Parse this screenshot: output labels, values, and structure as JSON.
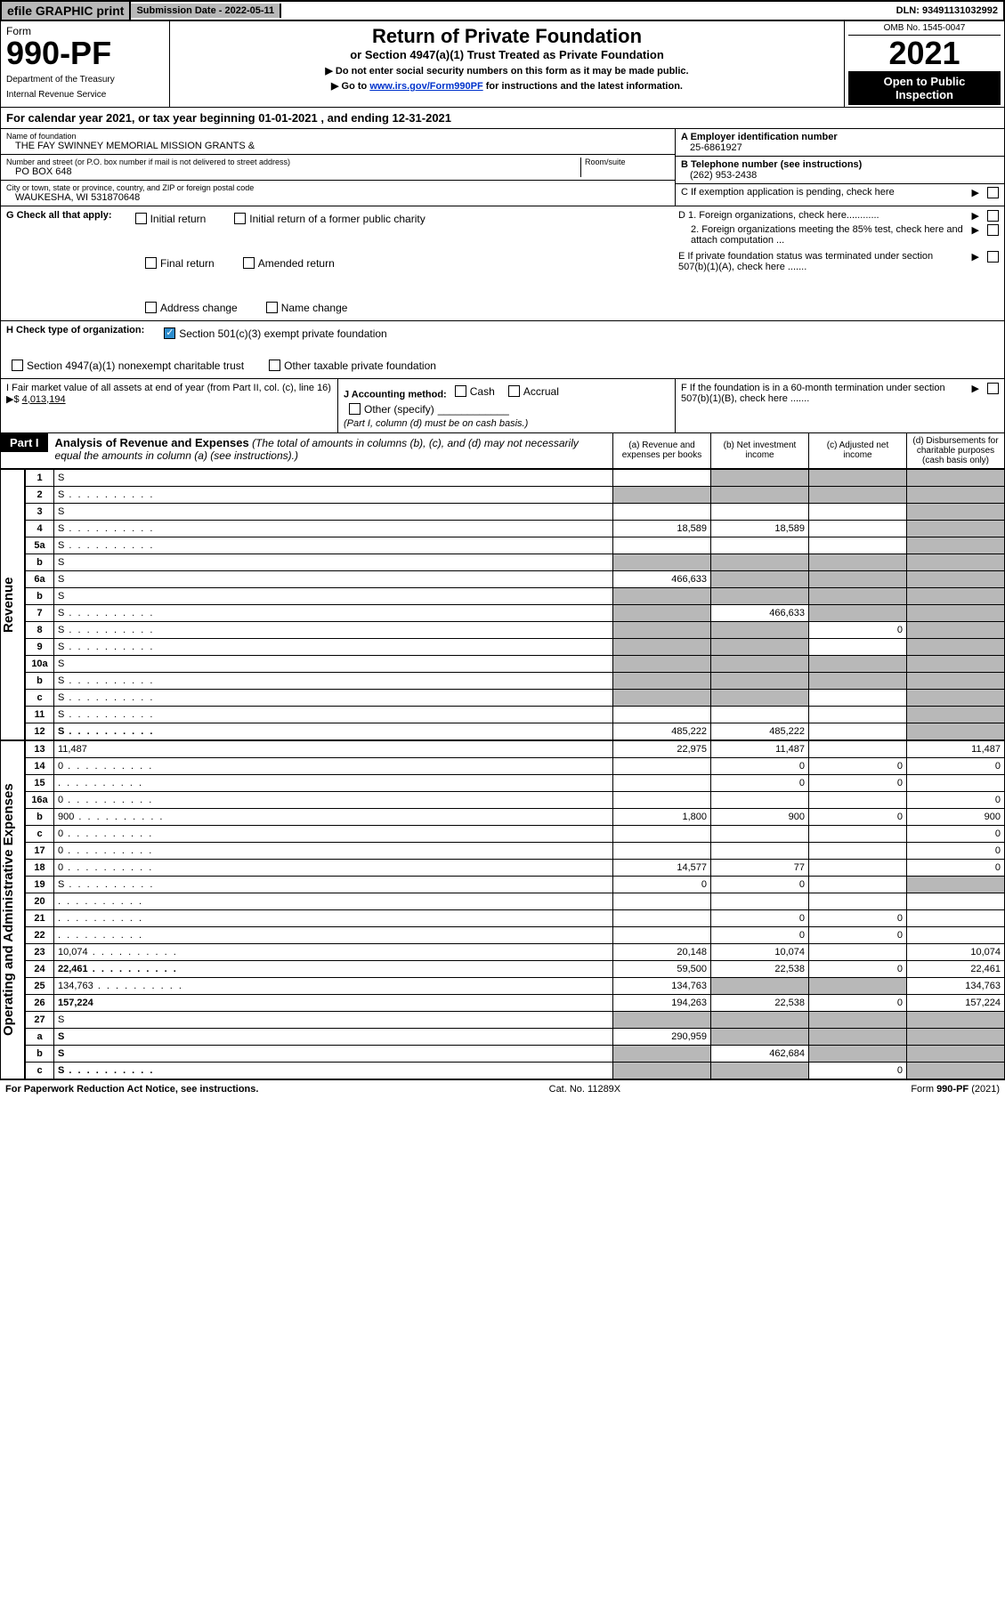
{
  "topbar": {
    "efile": "efile GRAPHIC print",
    "subdate_label": "Submission Date - ",
    "subdate": "2022-05-11",
    "dln_label": "DLN: ",
    "dln": "93491131032992"
  },
  "header": {
    "form_word": "Form",
    "form_no": "990-PF",
    "dept1": "Department of the Treasury",
    "dept2": "Internal Revenue Service",
    "title": "Return of Private Foundation",
    "subtitle": "or Section 4947(a)(1) Trust Treated as Private Foundation",
    "note1": "▶ Do not enter social security numbers on this form as it may be made public.",
    "note2_pre": "▶ Go to ",
    "note2_link": "www.irs.gov/Form990PF",
    "note2_post": " for instructions and the latest information.",
    "omb": "OMB No. 1545-0047",
    "year": "2021",
    "open1": "Open to Public",
    "open2": "Inspection"
  },
  "calyear": {
    "pre": "For calendar year 2021, or tax year beginning ",
    "begin": "01-01-2021",
    "mid": " , and ending ",
    "end": "12-31-2021"
  },
  "info": {
    "name_label": "Name of foundation",
    "name": "THE FAY SWINNEY MEMORIAL MISSION GRANTS &",
    "addr_label": "Number and street (or P.O. box number if mail is not delivered to street address)",
    "addr": "PO BOX 648",
    "room_label": "Room/suite",
    "city_label": "City or town, state or province, country, and ZIP or foreign postal code",
    "city": "WAUKESHA, WI  531870648",
    "A_label": "A Employer identification number",
    "A_val": "25-6861927",
    "B_label": "B Telephone number (see instructions)",
    "B_val": "(262) 953-2438",
    "C_label": "C If exemption application is pending, check here",
    "D1_label": "D 1. Foreign organizations, check here............",
    "D2_label": "2. Foreign organizations meeting the 85% test, check here and attach computation ...",
    "E_label": "E  If private foundation status was terminated under section 507(b)(1)(A), check here .......",
    "F_label": "F  If the foundation is in a 60-month termination under section 507(b)(1)(B), check here .......",
    "G_label": "G Check all that apply:",
    "G_opts": [
      "Initial return",
      "Initial return of a former public charity",
      "Final return",
      "Amended return",
      "Address change",
      "Name change"
    ],
    "H_label": "H Check type of organization:",
    "H_opt1": "Section 501(c)(3) exempt private foundation",
    "H_opt2": "Section 4947(a)(1) nonexempt charitable trust",
    "H_opt3": "Other taxable private foundation",
    "I_label": "I Fair market value of all assets at end of year (from Part II, col. (c), line 16) ▶$",
    "I_val": "4,013,194",
    "J_label": "J Accounting method:",
    "J_cash": "Cash",
    "J_accrual": "Accrual",
    "J_other": "Other (specify)",
    "J_note": "(Part I, column (d) must be on cash basis.)"
  },
  "part1": {
    "tab": "Part I",
    "title": "Analysis of Revenue and Expenses",
    "note": "(The total of amounts in columns (b), (c), and (d) may not necessarily equal the amounts in column (a) (see instructions).)",
    "col_a": "(a)  Revenue and expenses per books",
    "col_b": "(b)  Net investment income",
    "col_c": "(c)  Adjusted net income",
    "col_d": "(d)  Disbursements for charitable purposes (cash basis only)"
  },
  "side": {
    "rev": "Revenue",
    "exp": "Operating and Administrative Expenses"
  },
  "rows": [
    {
      "n": "1",
      "d": "S",
      "a": "",
      "b": "S",
      "c": "S"
    },
    {
      "n": "2",
      "d": "S",
      "a": "S",
      "b": "S",
      "c": "S",
      "dot": true
    },
    {
      "n": "3",
      "d": "S",
      "a": "",
      "b": "",
      "c": ""
    },
    {
      "n": "4",
      "d": "S",
      "a": "18,589",
      "b": "18,589",
      "c": "",
      "dot": true
    },
    {
      "n": "5a",
      "d": "S",
      "a": "",
      "b": "",
      "c": "",
      "dot": true
    },
    {
      "n": "b",
      "d": "S",
      "a": "S",
      "b": "S",
      "c": "S"
    },
    {
      "n": "6a",
      "d": "S",
      "a": "466,633",
      "b": "S",
      "c": "S"
    },
    {
      "n": "b",
      "d": "S",
      "a": "S",
      "b": "S",
      "c": "S"
    },
    {
      "n": "7",
      "d": "S",
      "a": "S",
      "b": "466,633",
      "c": "S",
      "dot": true
    },
    {
      "n": "8",
      "d": "S",
      "a": "S",
      "b": "S",
      "c": "0",
      "dot": true
    },
    {
      "n": "9",
      "d": "S",
      "a": "S",
      "b": "S",
      "c": "",
      "dot": true
    },
    {
      "n": "10a",
      "d": "S",
      "a": "S",
      "b": "S",
      "c": "S"
    },
    {
      "n": "b",
      "d": "S",
      "a": "S",
      "b": "S",
      "c": "S",
      "dot": true
    },
    {
      "n": "c",
      "d": "S",
      "a": "S",
      "b": "S",
      "c": "",
      "dot": true
    },
    {
      "n": "11",
      "d": "S",
      "a": "",
      "b": "",
      "c": "",
      "dot": true
    },
    {
      "n": "12",
      "d": "S",
      "a": "485,222",
      "b": "485,222",
      "c": "",
      "bold": true,
      "dot": true
    }
  ],
  "exp_rows": [
    {
      "n": "13",
      "d": "11,487",
      "a": "22,975",
      "b": "11,487",
      "c": ""
    },
    {
      "n": "14",
      "d": "0",
      "a": "",
      "b": "0",
      "c": "0",
      "dot": true
    },
    {
      "n": "15",
      "d": "",
      "a": "",
      "b": "0",
      "c": "0",
      "dot": true
    },
    {
      "n": "16a",
      "d": "0",
      "a": "",
      "b": "",
      "c": "",
      "dot": true
    },
    {
      "n": "b",
      "d": "900",
      "a": "1,800",
      "b": "900",
      "c": "0",
      "dot": true
    },
    {
      "n": "c",
      "d": "0",
      "a": "",
      "b": "",
      "c": "",
      "dot": true
    },
    {
      "n": "17",
      "d": "0",
      "a": "",
      "b": "",
      "c": "",
      "dot": true
    },
    {
      "n": "18",
      "d": "0",
      "a": "14,577",
      "b": "77",
      "c": "",
      "dot": true
    },
    {
      "n": "19",
      "d": "S",
      "a": "0",
      "b": "0",
      "c": "",
      "dot": true
    },
    {
      "n": "20",
      "d": "",
      "a": "",
      "b": "",
      "c": "",
      "dot": true
    },
    {
      "n": "21",
      "d": "",
      "a": "",
      "b": "0",
      "c": "0",
      "dot": true
    },
    {
      "n": "22",
      "d": "",
      "a": "",
      "b": "0",
      "c": "0",
      "dot": true
    },
    {
      "n": "23",
      "d": "10,074",
      "a": "20,148",
      "b": "10,074",
      "c": "",
      "dot": true
    },
    {
      "n": "24",
      "d": "22,461",
      "a": "59,500",
      "b": "22,538",
      "c": "0",
      "bold": true,
      "dot": true
    },
    {
      "n": "25",
      "d": "134,763",
      "a": "134,763",
      "b": "S",
      "c": "S",
      "dot": true
    },
    {
      "n": "26",
      "d": "157,224",
      "a": "194,263",
      "b": "22,538",
      "c": "0",
      "bold": true
    },
    {
      "n": "27",
      "d": "S",
      "a": "S",
      "b": "S",
      "c": "S"
    },
    {
      "n": "a",
      "d": "S",
      "a": "290,959",
      "b": "S",
      "c": "S",
      "bold": true
    },
    {
      "n": "b",
      "d": "S",
      "a": "S",
      "b": "462,684",
      "c": "S",
      "bold": true
    },
    {
      "n": "c",
      "d": "S",
      "a": "S",
      "b": "S",
      "c": "0",
      "bold": true,
      "dot": true
    }
  ],
  "footer": {
    "left": "For Paperwork Reduction Act Notice, see instructions.",
    "mid": "Cat. No. 11289X",
    "right": "Form 990-PF (2021)"
  },
  "colors": {
    "shade": "#b8b8b8",
    "link": "#0033cc",
    "check": "#2c8ccc"
  }
}
